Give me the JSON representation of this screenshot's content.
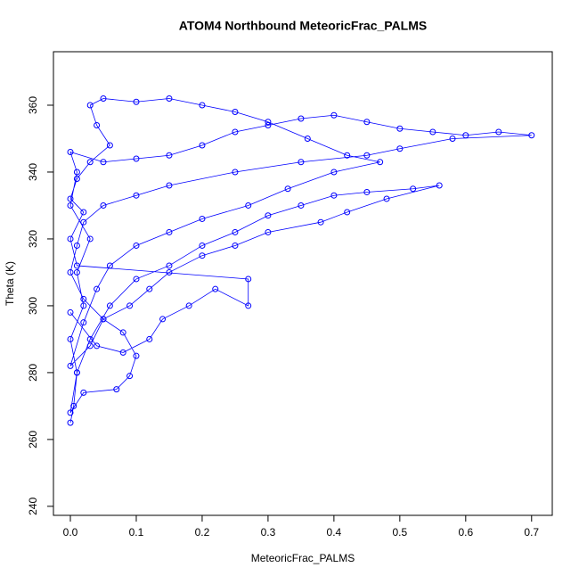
{
  "chart_data": {
    "type": "scatter-line",
    "title": "ATOM4 Northbound MeteoricFrac_PALMS",
    "x_label": "MeteoricFrac_PALMS",
    "y_label": "Theta (K)",
    "color": "#0000ff",
    "xlim": [
      -0.0257,
      0.7314
    ],
    "ylim": [
      237.3,
      376
    ],
    "xticks": [
      {
        "value": 0,
        "label": "0.0"
      },
      0.1,
      0.2,
      0.3,
      0.4,
      0.5,
      0.6,
      0.7
    ],
    "yticks": [
      240,
      260,
      280,
      300,
      320,
      340,
      360
    ],
    "x": [
      0,
      0.005,
      0.01,
      0,
      0.02,
      0.01,
      0.03,
      0,
      0.01,
      0,
      0.05,
      0.1,
      0.15,
      0.2,
      0.25,
      0.3,
      0.35,
      0.4,
      0.45,
      0.5,
      0.55,
      0.6,
      0.65,
      0.7,
      0.58,
      0.5,
      0.45,
      0.35,
      0.25,
      0.15,
      0.1,
      0.05,
      0.02,
      0.01,
      0,
      0.02,
      0.05,
      0.08,
      0.1,
      0.09,
      0.07,
      0.02,
      0,
      0.01,
      0.03,
      0.06,
      0.1,
      0.15,
      0.2,
      0.25,
      0.3,
      0.35,
      0.4,
      0.45,
      0.52,
      0.56,
      0.48,
      0.42,
      0.38,
      0.3,
      0.25,
      0.2,
      0.15,
      0.12,
      0.09,
      0.05,
      0.03,
      0,
      0.02,
      0.04,
      0.06,
      0.1,
      0.15,
      0.2,
      0.27,
      0.33,
      0.4,
      0.47,
      0.42,
      0.36,
      0.3,
      0.25,
      0.2,
      0.15,
      0.1,
      0.05,
      0.03,
      0.04,
      0.06,
      0.03,
      0.01,
      0,
      0.02,
      0,
      0.01,
      0.27,
      0.27,
      0.22,
      0.18,
      0.14,
      0.12,
      0.08,
      0.04,
      0
    ],
    "values": [
      265,
      270,
      280,
      290,
      300,
      310,
      320,
      330,
      340,
      346,
      343,
      344,
      345,
      348,
      352,
      354,
      356,
      357,
      355,
      353,
      352,
      351,
      352,
      351,
      350,
      347,
      345,
      343,
      340,
      336,
      333,
      330,
      325,
      318,
      310,
      302,
      296,
      292,
      285,
      279,
      275,
      274,
      268,
      280,
      290,
      300,
      308,
      312,
      318,
      322,
      327,
      330,
      333,
      334,
      335,
      336,
      332,
      328,
      325,
      322,
      318,
      315,
      310,
      305,
      300,
      296,
      288,
      282,
      295,
      305,
      312,
      318,
      322,
      326,
      330,
      335,
      340,
      343,
      345,
      350,
      355,
      358,
      360,
      362,
      361,
      362,
      360,
      354,
      348,
      343,
      338,
      332,
      328,
      320,
      312,
      308,
      300,
      305,
      300,
      296,
      290,
      286,
      288,
      298
    ]
  }
}
